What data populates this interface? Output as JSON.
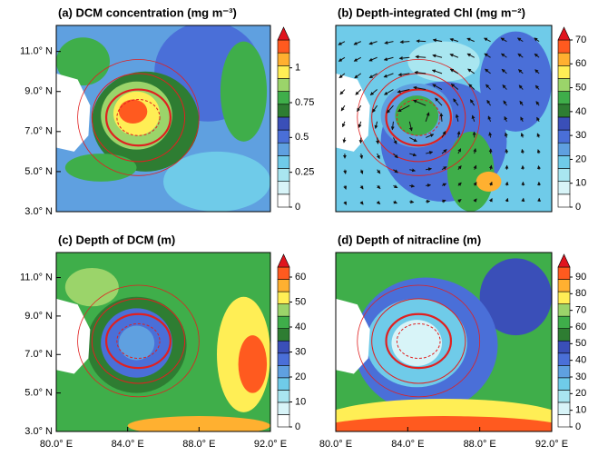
{
  "chart_data": [
    {
      "type": "contour",
      "title": "(a) DCM concentration (mg m⁻³)",
      "xlim": [
        80,
        92
      ],
      "ylim": [
        3,
        12.3
      ],
      "yticks": [
        {
          "value": 3,
          "label": "3.0° N"
        },
        {
          "value": 5,
          "label": "5.0° N"
        },
        {
          "value": 7,
          "label": "7.0° N"
        },
        {
          "value": 9,
          "label": "9.0° N"
        },
        {
          "value": 11,
          "label": "11.0° N"
        }
      ],
      "clim": [
        0,
        1.2
      ],
      "cticks": [
        0,
        0.25,
        0.5,
        0.75,
        1
      ],
      "colors": [
        "#ffffff",
        "#d8f4f8",
        "#a9e6f0",
        "#6fcbe9",
        "#5fa0e0",
        "#4a6fd8",
        "#3a4fb8",
        "#2e7d32",
        "#3fae4a",
        "#9bd46a",
        "#ffee55",
        "#ffb030",
        "#ff5a1f",
        "#e0141e"
      ]
    },
    {
      "type": "contour",
      "title": "(b) Depth-integrated Chl (mg m⁻²)",
      "xlim": [
        80,
        92
      ],
      "ylim": [
        3,
        12.3
      ],
      "clim": [
        0,
        70
      ],
      "cticks": [
        0,
        10,
        20,
        30,
        40,
        50,
        60,
        70
      ],
      "colors": [
        "#ffffff",
        "#d8f4f8",
        "#a9e6f0",
        "#6fcbe9",
        "#5fa0e0",
        "#4a6fd8",
        "#3a4fb8",
        "#2e7d32",
        "#3fae4a",
        "#9bd46a",
        "#ffee55",
        "#ffb030",
        "#ff5a1f",
        "#e0141e"
      ]
    },
    {
      "type": "contour",
      "title": "(c) Depth of DCM (m)",
      "xlim": [
        80,
        92
      ],
      "ylim": [
        3,
        12.3
      ],
      "xticks": [
        {
          "value": 80,
          "label": "80.0° E"
        },
        {
          "value": 84,
          "label": "84.0° E"
        },
        {
          "value": 88,
          "label": "88.0° E"
        },
        {
          "value": 92,
          "label": "92.0° E"
        }
      ],
      "yticks": [
        {
          "value": 3,
          "label": "3.0° N"
        },
        {
          "value": 5,
          "label": "5.0° N"
        },
        {
          "value": 7,
          "label": "7.0° N"
        },
        {
          "value": 9,
          "label": "9.0° N"
        },
        {
          "value": 11,
          "label": "11.0° N"
        }
      ],
      "clim": [
        0,
        64
      ],
      "cticks": [
        0,
        10,
        20,
        30,
        40,
        50,
        60
      ],
      "colors": [
        "#ffffff",
        "#d8f4f8",
        "#a9e6f0",
        "#6fcbe9",
        "#5fa0e0",
        "#4a6fd8",
        "#3a4fb8",
        "#2e7d32",
        "#3fae4a",
        "#9bd46a",
        "#ffee55",
        "#ffb030",
        "#ff5a1f",
        "#e0141e"
      ]
    },
    {
      "type": "contour",
      "title": "(d) Depth of nitracline (m)",
      "xlim": [
        80,
        92
      ],
      "ylim": [
        3,
        12.3
      ],
      "xticks": [
        {
          "value": 80,
          "label": "80.0° E"
        },
        {
          "value": 84,
          "label": "84.0° E"
        },
        {
          "value": 88,
          "label": "88.0° E"
        },
        {
          "value": 92,
          "label": "92.0° E"
        }
      ],
      "clim": [
        0,
        96
      ],
      "cticks": [
        0,
        10,
        20,
        30,
        40,
        50,
        60,
        70,
        80,
        90
      ],
      "colors": [
        "#ffffff",
        "#d8f4f8",
        "#a9e6f0",
        "#6fcbe9",
        "#5fa0e0",
        "#4a6fd8",
        "#3a4fb8",
        "#2e7d32",
        "#3fae4a",
        "#9bd46a",
        "#ffee55",
        "#ffb030",
        "#ff5a1f",
        "#e0141e"
      ]
    }
  ]
}
